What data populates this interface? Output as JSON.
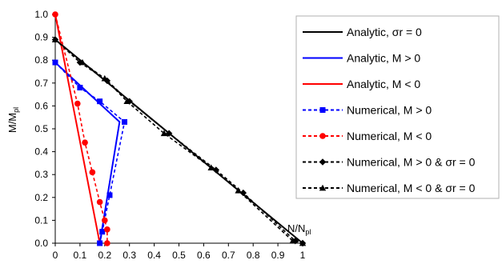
{
  "chart_data": {
    "type": "line",
    "xlabel": "N/N",
    "xlabel_sub": "pl",
    "ylabel": "M/M",
    "ylabel_sub": "pl",
    "xlim": [
      0,
      1
    ],
    "ylim": [
      0,
      1
    ],
    "xticks": [
      "0",
      "0.1",
      "0.2",
      "0.3",
      "0.4",
      "0.5",
      "0.6",
      "0.7",
      "0.8",
      "0.9",
      "1"
    ],
    "yticks": [
      "0.0",
      "0.1",
      "0.2",
      "0.3",
      "0.4",
      "0.5",
      "0.6",
      "0.7",
      "0.8",
      "0.9",
      "1.0"
    ],
    "grid": false,
    "legend_position": "right",
    "series": [
      {
        "name": "Analytic, σr = 0",
        "color": "#000000",
        "dash": "solid",
        "marker": "none",
        "points": [
          [
            0,
            0.89
          ],
          [
            1,
            0
          ]
        ]
      },
      {
        "name": "Analytic, M > 0",
        "color": "#0000ff",
        "dash": "solid",
        "marker": "none",
        "points": [
          [
            0,
            0.79
          ],
          [
            0.26,
            0.53
          ],
          [
            0.18,
            0
          ]
        ]
      },
      {
        "name": "Analytic, M < 0",
        "color": "#ff0000",
        "dash": "solid",
        "marker": "none",
        "points": [
          [
            0,
            1.0
          ],
          [
            0.18,
            0
          ]
        ]
      },
      {
        "name": "Numerical, M > 0",
        "color": "#0000ff",
        "dash": "dash",
        "marker": "square",
        "points": [
          [
            0,
            0.79
          ],
          [
            0.1,
            0.68
          ],
          [
            0.18,
            0.62
          ],
          [
            0.28,
            0.53
          ],
          [
            0.22,
            0.21
          ],
          [
            0.19,
            0.05
          ],
          [
            0.18,
            0
          ]
        ]
      },
      {
        "name": "Numerical, M < 0",
        "color": "#ff0000",
        "dash": "dash",
        "marker": "circle",
        "points": [
          [
            0,
            1.0
          ],
          [
            0.09,
            0.61
          ],
          [
            0.12,
            0.44
          ],
          [
            0.15,
            0.31
          ],
          [
            0.18,
            0.18
          ],
          [
            0.2,
            0.1
          ],
          [
            0.21,
            0.06
          ],
          [
            0.21,
            0
          ]
        ]
      },
      {
        "name": "Numerical, M > 0 & σr = 0",
        "color": "#000000",
        "dash": "dash",
        "marker": "diamond",
        "points": [
          [
            0,
            0.89
          ],
          [
            0.1,
            0.79
          ],
          [
            0.21,
            0.71
          ],
          [
            0.3,
            0.62
          ],
          [
            0.46,
            0.48
          ],
          [
            0.65,
            0.32
          ],
          [
            0.76,
            0.22
          ],
          [
            0.97,
            0.01
          ],
          [
            1,
            0
          ]
        ]
      },
      {
        "name": "Numerical, M < 0 & σr = 0",
        "color": "#000000",
        "dash": "dash",
        "marker": "triangle",
        "points": [
          [
            0,
            0.89
          ],
          [
            0.11,
            0.79
          ],
          [
            0.2,
            0.72
          ],
          [
            0.29,
            0.62
          ],
          [
            0.44,
            0.48
          ],
          [
            0.63,
            0.33
          ],
          [
            0.74,
            0.23
          ],
          [
            0.96,
            0.01
          ],
          [
            1,
            0
          ]
        ]
      }
    ]
  }
}
